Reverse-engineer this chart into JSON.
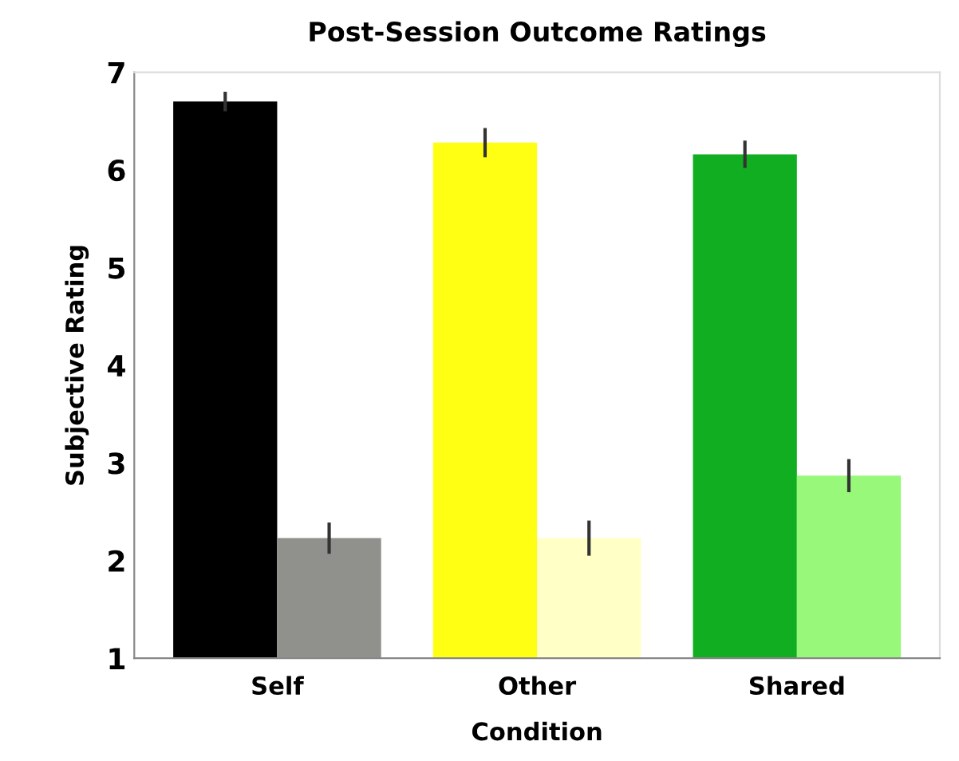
{
  "chart_data": {
    "type": "bar",
    "title": "Post-Session Outcome Ratings",
    "xlabel": "Condition",
    "ylabel": "Subjective Rating",
    "categories": [
      "Self",
      "Other",
      "Shared"
    ],
    "series": [
      {
        "colors": [
          "#000000",
          "#ffff14",
          "#10ae20"
        ],
        "values": [
          6.7,
          6.28,
          6.16
        ],
        "errors": [
          0.1,
          0.15,
          0.14
        ]
      },
      {
        "colors": [
          "#90918c",
          "#ffffc6",
          "#98f87a"
        ],
        "values": [
          2.23,
          2.23,
          2.87
        ],
        "errors": [
          0.16,
          0.18,
          0.17
        ]
      }
    ],
    "ylim": [
      1,
      7
    ],
    "yticks": [
      1,
      2,
      3,
      4,
      5,
      6,
      7
    ],
    "grid": false,
    "legend": false
  }
}
